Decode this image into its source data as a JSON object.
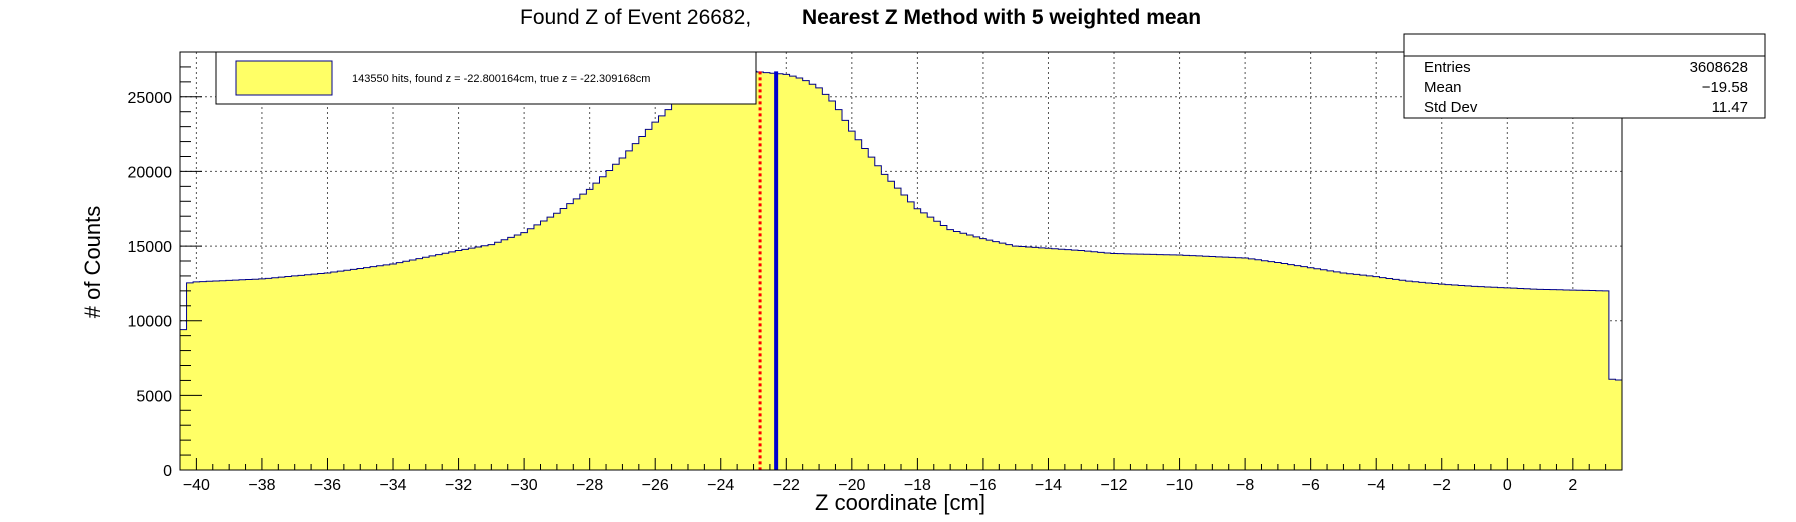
{
  "chart_data": {
    "type": "histogram",
    "title_prefix": "Found Z of Event 26682,",
    "title_bold": "Nearest Z Method with 5 weighted mean",
    "xlabel": "Z coordinate [cm]",
    "ylabel": "# of Counts",
    "xlim": [
      -40.5,
      3.5
    ],
    "ylim": [
      0,
      28000
    ],
    "x_ticks": [
      -40,
      -38,
      -36,
      -34,
      -32,
      -30,
      -28,
      -26,
      -24,
      -22,
      -20,
      -18,
      -16,
      -14,
      -12,
      -10,
      -8,
      -6,
      -4,
      -2,
      0,
      2
    ],
    "y_ticks": [
      0,
      5000,
      10000,
      15000,
      20000,
      25000
    ],
    "grid": true,
    "fill_color": "#ffff66",
    "line_color": "#00008b",
    "curve": {
      "z": [
        -40.5,
        -40.3,
        -40.0,
        -38.0,
        -36.0,
        -34.0,
        -32.0,
        -31.0,
        -30.0,
        -29.0,
        -28.0,
        -27.0,
        -26.0,
        -25.0,
        -24.0,
        -23.0,
        -22.5,
        -22.0,
        -21.5,
        -21.0,
        -20.5,
        -20.0,
        -19.0,
        -18.0,
        -17.0,
        -16.0,
        -15.0,
        -14.0,
        -13.0,
        -12.0,
        -11.0,
        -10.0,
        -9.0,
        -8.0,
        -7.0,
        -6.0,
        -5.0,
        -4.0,
        -3.0,
        -2.0,
        -1.0,
        0.0,
        1.0,
        2.0,
        3.0,
        3.1,
        3.5
      ],
      "counts": [
        6300,
        12500,
        12600,
        12800,
        13200,
        13800,
        14700,
        15100,
        15900,
        17200,
        18800,
        20900,
        23300,
        25400,
        26600,
        26700,
        26600,
        26500,
        26200,
        25600,
        24500,
        22700,
        19800,
        17500,
        16100,
        15500,
        15000,
        14850,
        14700,
        14500,
        14450,
        14400,
        14300,
        14200,
        13900,
        13550,
        13200,
        12950,
        12650,
        12450,
        12300,
        12200,
        12100,
        12050,
        12000,
        6100,
        6000
      ]
    },
    "found_z": -22.8,
    "true_z": -22.31,
    "found_color": "#ff0000",
    "true_color": "#0000cc",
    "legend": {
      "label": "143550 hits, found z = -22.800164cm, true z = -22.309168cm",
      "position": "top-left"
    },
    "stats": {
      "position": "top-right",
      "rows": [
        {
          "name": "Entries",
          "value": "3608628"
        },
        {
          "name": "Mean",
          "value": "−19.58"
        },
        {
          "name": "Std Dev",
          "value": "11.47"
        }
      ]
    }
  }
}
